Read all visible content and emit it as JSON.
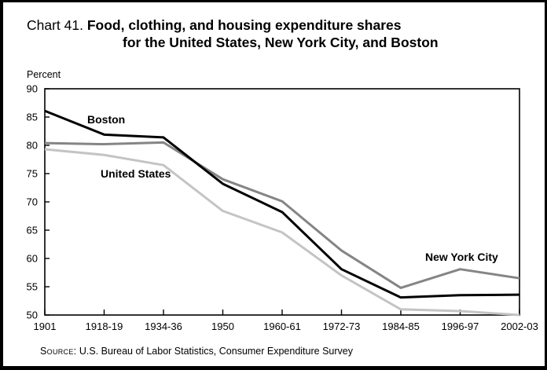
{
  "title": {
    "prefix": "Chart 41.",
    "line1": "Food, clothing, and housing expenditure shares",
    "line2": "for the United States, New York City, and Boston"
  },
  "axis_unit_label": "Percent",
  "source": {
    "prefix": "Source:",
    "text": " U.S. Bureau of Labor Statistics, Consumer Expenditure Survey"
  },
  "chart_data": {
    "type": "line",
    "title": "Chart 41. Food, clothing, and housing expenditure shares for the United States, New York City, and Boston",
    "ylabel": "Percent",
    "xlabel": "",
    "ylim": [
      50,
      90
    ],
    "ytick_step": 5,
    "yticks": [
      50,
      55,
      60,
      65,
      70,
      75,
      80,
      85,
      90
    ],
    "grid": false,
    "legend_position": "inline-labels",
    "categories": [
      "1901",
      "1918-19",
      "1934-36",
      "1950",
      "1960-61",
      "1972-73",
      "1984-85",
      "1996-97",
      "2002-03"
    ],
    "series": [
      {
        "name": "Boston",
        "color": "#000000",
        "values": [
          86.1,
          81.9,
          81.4,
          73.2,
          68.2,
          58.1,
          53.1,
          53.5,
          53.6
        ]
      },
      {
        "name": "New York City",
        "color": "#858585",
        "values": [
          80.4,
          80.2,
          80.5,
          74.0,
          70.1,
          61.4,
          54.8,
          58.1,
          56.5
        ]
      },
      {
        "name": "United States",
        "color": "#c4c4c4",
        "values": [
          79.3,
          78.3,
          76.5,
          68.4,
          64.6,
          57.0,
          51.0,
          50.7,
          50.0
        ]
      }
    ]
  }
}
